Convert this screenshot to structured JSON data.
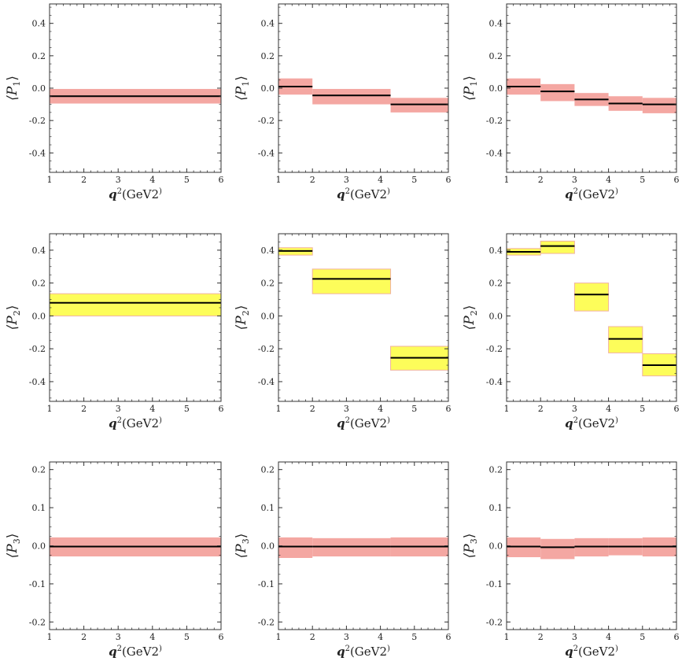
{
  "colors": {
    "band_red": "#f4a7a2",
    "band_yellow": "#fdfd5a",
    "band_yellow_edge": "#f0b2a0",
    "center_line": "#000000",
    "frame": "#333333"
  },
  "chart_data": [
    {
      "type": "bar",
      "title": "",
      "grid": false,
      "ylabel": "⟨P1⟩",
      "ylabel_base": "⟨P",
      "ylabel_sub": "1",
      "ylabel_close": "⟩",
      "xlabel": "q2(GeV2)",
      "xlim": [
        1,
        6
      ],
      "ylim": [
        -0.52,
        0.52
      ],
      "xticks": [
        1,
        2,
        3,
        4,
        5,
        6
      ],
      "xtick_labels": [
        "1",
        "2",
        "3",
        "4",
        "5",
        "6"
      ],
      "yticks": [
        -0.4,
        -0.2,
        0.0,
        0.2,
        0.4
      ],
      "ytick_labels": [
        "-0.4",
        "-0.2",
        "0.0",
        "0.2",
        "0.4"
      ],
      "bins": [
        {
          "x0": 1,
          "x1": 6,
          "center": -0.05,
          "low": -0.095,
          "high": -0.005,
          "band": "red"
        }
      ]
    },
    {
      "type": "bar",
      "title": "",
      "grid": false,
      "ylabel": "⟨P1⟩",
      "ylabel_base": "⟨P",
      "ylabel_sub": "1",
      "ylabel_close": "⟩",
      "xlabel": "q2(GeV2)",
      "xlim": [
        1,
        6
      ],
      "ylim": [
        -0.52,
        0.52
      ],
      "xticks": [
        1,
        2,
        3,
        4,
        5,
        6
      ],
      "xtick_labels": [
        "1",
        "2",
        "3",
        "4",
        "5",
        "6"
      ],
      "yticks": [
        -0.4,
        -0.2,
        0.0,
        0.2,
        0.4
      ],
      "ytick_labels": [
        "-0.4",
        "-0.2",
        "0.0",
        "0.2",
        "0.4"
      ],
      "bins": [
        {
          "x0": 1,
          "x1": 2,
          "center": 0.01,
          "low": -0.04,
          "high": 0.06,
          "band": "red"
        },
        {
          "x0": 2,
          "x1": 4.3,
          "center": -0.045,
          "low": -0.1,
          "high": -0.005,
          "band": "red"
        },
        {
          "x0": 4.3,
          "x1": 6,
          "center": -0.1,
          "low": -0.15,
          "high": -0.06,
          "band": "red"
        }
      ]
    },
    {
      "type": "bar",
      "title": "",
      "grid": false,
      "ylabel": "⟨P1⟩",
      "ylabel_base": "⟨P",
      "ylabel_sub": "1",
      "ylabel_close": "⟩",
      "xlabel": "q2(GeV2)",
      "xlim": [
        1,
        6
      ],
      "ylim": [
        -0.52,
        0.52
      ],
      "xticks": [
        1,
        2,
        3,
        4,
        5,
        6
      ],
      "xtick_labels": [
        "1",
        "2",
        "3",
        "4",
        "5",
        "6"
      ],
      "yticks": [
        -0.4,
        -0.2,
        0.0,
        0.2,
        0.4
      ],
      "ytick_labels": [
        "-0.4",
        "-0.2",
        "0.0",
        "0.2",
        "0.4"
      ],
      "bins": [
        {
          "x0": 1,
          "x1": 2,
          "center": 0.01,
          "low": -0.04,
          "high": 0.06,
          "band": "red"
        },
        {
          "x0": 2,
          "x1": 3,
          "center": -0.02,
          "low": -0.08,
          "high": 0.025,
          "band": "red"
        },
        {
          "x0": 3,
          "x1": 4,
          "center": -0.07,
          "low": -0.11,
          "high": -0.03,
          "band": "red"
        },
        {
          "x0": 4,
          "x1": 5,
          "center": -0.095,
          "low": -0.14,
          "high": -0.05,
          "band": "red"
        },
        {
          "x0": 5,
          "x1": 6,
          "center": -0.1,
          "low": -0.155,
          "high": -0.06,
          "band": "red"
        }
      ]
    },
    {
      "type": "bar",
      "title": "",
      "grid": false,
      "ylabel": "⟨P2⟩",
      "ylabel_base": "⟨P",
      "ylabel_sub": "2",
      "ylabel_close": "⟩",
      "xlabel": "q2(GeV2)",
      "xlim": [
        1,
        6
      ],
      "ylim": [
        -0.52,
        0.5
      ],
      "xticks": [
        1,
        2,
        3,
        4,
        5,
        6
      ],
      "xtick_labels": [
        "1",
        "2",
        "3",
        "4",
        "5",
        "6"
      ],
      "yticks": [
        -0.4,
        -0.2,
        0.0,
        0.2,
        0.4
      ],
      "ytick_labels": [
        "-0.4",
        "-0.2",
        "0.0",
        "0.2",
        "0.4"
      ],
      "bins": [
        {
          "x0": 1,
          "x1": 6,
          "center": 0.08,
          "low": 0.0,
          "high": 0.135,
          "band": "yellow"
        }
      ]
    },
    {
      "type": "bar",
      "title": "",
      "grid": false,
      "ylabel": "⟨P2⟩",
      "ylabel_base": "⟨P",
      "ylabel_sub": "2",
      "ylabel_close": "⟩",
      "xlabel": "q2(GeV2)",
      "xlim": [
        1,
        6
      ],
      "ylim": [
        -0.52,
        0.5
      ],
      "xticks": [
        1,
        2,
        3,
        4,
        5,
        6
      ],
      "xtick_labels": [
        "1",
        "2",
        "3",
        "4",
        "5",
        "6"
      ],
      "yticks": [
        -0.4,
        -0.2,
        0.0,
        0.2,
        0.4
      ],
      "ytick_labels": [
        "-0.4",
        "-0.2",
        "0.0",
        "0.2",
        "0.4"
      ],
      "bins": [
        {
          "x0": 1,
          "x1": 2,
          "center": 0.395,
          "low": 0.37,
          "high": 0.415,
          "band": "yellow"
        },
        {
          "x0": 2,
          "x1": 4.3,
          "center": 0.225,
          "low": 0.135,
          "high": 0.285,
          "band": "yellow"
        },
        {
          "x0": 4.3,
          "x1": 6,
          "center": -0.255,
          "low": -0.33,
          "high": -0.185,
          "band": "yellow"
        }
      ]
    },
    {
      "type": "bar",
      "title": "",
      "grid": false,
      "ylabel": "⟨P2⟩",
      "ylabel_base": "⟨P",
      "ylabel_sub": "2",
      "ylabel_close": "⟩",
      "xlabel": "q2(GeV2)",
      "xlim": [
        1,
        6
      ],
      "ylim": [
        -0.52,
        0.5
      ],
      "xticks": [
        1,
        2,
        3,
        4,
        5,
        6
      ],
      "xtick_labels": [
        "1",
        "2",
        "3",
        "4",
        "5",
        "6"
      ],
      "yticks": [
        -0.4,
        -0.2,
        0.0,
        0.2,
        0.4
      ],
      "ytick_labels": [
        "-0.4",
        "-0.2",
        "0.0",
        "0.2",
        "0.4"
      ],
      "bins": [
        {
          "x0": 1,
          "x1": 2,
          "center": 0.39,
          "low": 0.37,
          "high": 0.41,
          "band": "yellow"
        },
        {
          "x0": 2,
          "x1": 3,
          "center": 0.425,
          "low": 0.38,
          "high": 0.455,
          "band": "yellow"
        },
        {
          "x0": 3,
          "x1": 4,
          "center": 0.13,
          "low": 0.03,
          "high": 0.2,
          "band": "yellow"
        },
        {
          "x0": 4,
          "x1": 5,
          "center": -0.14,
          "low": -0.225,
          "high": -0.065,
          "band": "yellow"
        },
        {
          "x0": 5,
          "x1": 6,
          "center": -0.3,
          "low": -0.365,
          "high": -0.23,
          "band": "yellow"
        }
      ]
    },
    {
      "type": "bar",
      "title": "",
      "grid": false,
      "ylabel": "⟨P3⟩",
      "ylabel_base": "⟨P",
      "ylabel_sub": "3",
      "ylabel_close": "⟩",
      "xlabel": "q2(GeV2)",
      "xlim": [
        1,
        6
      ],
      "ylim": [
        -0.22,
        0.22
      ],
      "xticks": [
        1,
        2,
        3,
        4,
        5,
        6
      ],
      "xtick_labels": [
        "1",
        "2",
        "3",
        "4",
        "5",
        "6"
      ],
      "yticks": [
        -0.2,
        -0.1,
        0.0,
        0.1,
        0.2
      ],
      "ytick_labels": [
        "-0.2",
        "-0.1",
        "0.0",
        "0.1",
        "0.2"
      ],
      "bins": [
        {
          "x0": 1,
          "x1": 6,
          "center": -0.002,
          "low": -0.028,
          "high": 0.022,
          "band": "red"
        }
      ]
    },
    {
      "type": "bar",
      "title": "",
      "grid": false,
      "ylabel": "⟨P3⟩",
      "ylabel_base": "⟨P",
      "ylabel_sub": "3",
      "ylabel_close": "⟩",
      "xlabel": "q2(GeV2)",
      "xlim": [
        1,
        6
      ],
      "ylim": [
        -0.22,
        0.22
      ],
      "xticks": [
        1,
        2,
        3,
        4,
        5,
        6
      ],
      "xtick_labels": [
        "1",
        "2",
        "3",
        "4",
        "5",
        "6"
      ],
      "yticks": [
        -0.2,
        -0.1,
        0.0,
        0.1,
        0.2
      ],
      "ytick_labels": [
        "-0.2",
        "-0.1",
        "0.0",
        "0.1",
        "0.2"
      ],
      "bins": [
        {
          "x0": 1,
          "x1": 2,
          "center": -0.002,
          "low": -0.032,
          "high": 0.022,
          "band": "red"
        },
        {
          "x0": 2,
          "x1": 4.3,
          "center": -0.002,
          "low": -0.028,
          "high": 0.02,
          "band": "red"
        },
        {
          "x0": 4.3,
          "x1": 6,
          "center": -0.002,
          "low": -0.028,
          "high": 0.022,
          "band": "red"
        }
      ]
    },
    {
      "type": "bar",
      "title": "",
      "grid": false,
      "ylabel": "⟨P3⟩",
      "ylabel_base": "⟨P",
      "ylabel_sub": "3",
      "ylabel_close": "⟩",
      "xlabel": "q2(GeV2)",
      "xlim": [
        1,
        6
      ],
      "ylim": [
        -0.22,
        0.22
      ],
      "xticks": [
        1,
        2,
        3,
        4,
        5,
        6
      ],
      "xtick_labels": [
        "1",
        "2",
        "3",
        "4",
        "5",
        "6"
      ],
      "yticks": [
        -0.2,
        -0.1,
        0.0,
        0.1,
        0.2
      ],
      "ytick_labels": [
        "-0.2",
        "-0.1",
        "0.0",
        "0.1",
        "0.2"
      ],
      "bins": [
        {
          "x0": 1,
          "x1": 2,
          "center": -0.002,
          "low": -0.03,
          "high": 0.022,
          "band": "red"
        },
        {
          "x0": 2,
          "x1": 3,
          "center": -0.004,
          "low": -0.035,
          "high": 0.018,
          "band": "red"
        },
        {
          "x0": 3,
          "x1": 4,
          "center": -0.002,
          "low": -0.028,
          "high": 0.02,
          "band": "red"
        },
        {
          "x0": 4,
          "x1": 5,
          "center": -0.002,
          "low": -0.025,
          "high": 0.02,
          "band": "red"
        },
        {
          "x0": 5,
          "x1": 6,
          "center": -0.002,
          "low": -0.028,
          "high": 0.022,
          "band": "red"
        }
      ]
    }
  ]
}
